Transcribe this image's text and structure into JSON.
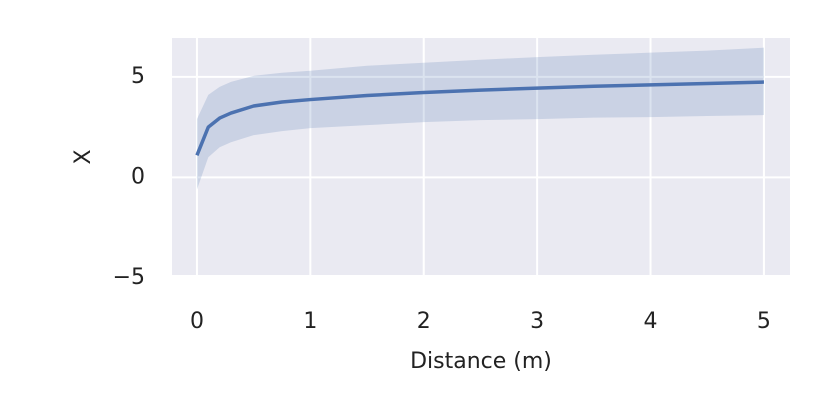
{
  "chart_data": {
    "type": "line",
    "x_label": "Distance (m)",
    "y_label": "X",
    "x": [
      0,
      0.1,
      0.2,
      0.3,
      0.5,
      0.75,
      1,
      1.5,
      2,
      2.5,
      3,
      3.5,
      4,
      4.5,
      5
    ],
    "series": [
      {
        "color": "#4c72b0",
        "values": [
          1.1,
          2.5,
          2.95,
          3.2,
          3.55,
          3.75,
          3.87,
          4.07,
          4.22,
          4.34,
          4.44,
          4.53,
          4.6,
          4.67,
          4.74
        ],
        "band_lower": [
          -0.6,
          1.0,
          1.5,
          1.75,
          2.1,
          2.3,
          2.45,
          2.6,
          2.75,
          2.85,
          2.9,
          2.97,
          3.0,
          3.05,
          3.1
        ],
        "band_upper": [
          2.9,
          4.1,
          4.5,
          4.75,
          5.05,
          5.2,
          5.3,
          5.55,
          5.7,
          5.85,
          5.98,
          6.1,
          6.2,
          6.3,
          6.45
        ]
      }
    ],
    "xlim": [
      -0.22,
      5.23
    ],
    "ylim": [
      -4.85,
      6.93
    ],
    "xticks": [
      0,
      1,
      2,
      3,
      4,
      5
    ],
    "yticks": [
      {
        "value": -5,
        "label": "−5"
      },
      0,
      5
    ],
    "grid": true
  }
}
